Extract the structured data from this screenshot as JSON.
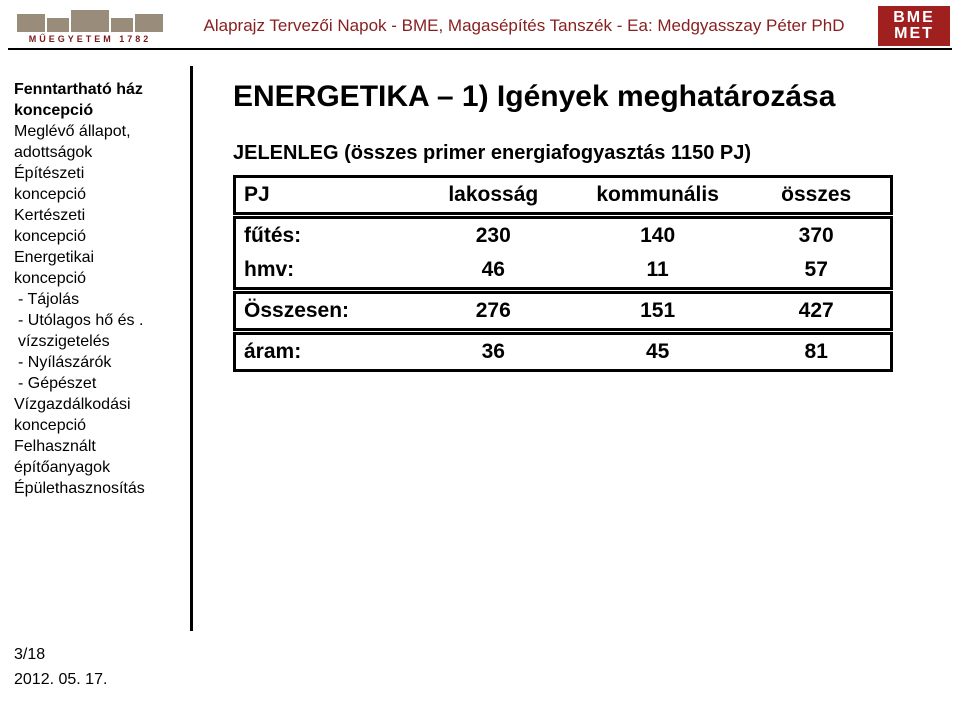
{
  "header": {
    "logo_left_text": "MŰEGYETEM 1782",
    "title": "Alaprajz Tervezői Napok - BME, Magasépítés Tanszék - Ea: Medgyasszay Péter PhD",
    "logo_right_line1": "BME",
    "logo_right_line2": "MET"
  },
  "sidebar": {
    "items": [
      {
        "text": "Fenntartható ház",
        "bold": true
      },
      {
        "text": "koncepció",
        "bold": true
      },
      {
        "text": "Meglévő állapot,",
        "bold": false
      },
      {
        "text": "adottságok",
        "bold": false
      },
      {
        "text": "Építészeti",
        "bold": false
      },
      {
        "text": "koncepció",
        "bold": false
      },
      {
        "text": "Kertészeti",
        "bold": false
      },
      {
        "text": "koncepció",
        "bold": false
      },
      {
        "text": "Energetikai",
        "bold": false
      },
      {
        "text": "koncepció",
        "bold": false
      },
      {
        "text": "- Tájolás",
        "bold": false,
        "sub": true
      },
      {
        "text": "- Utólagos hő és .",
        "bold": false,
        "sub": true
      },
      {
        "text": "vízszigetelés",
        "bold": false,
        "sub": true
      },
      {
        "text": "- Nyílászárók",
        "bold": false,
        "sub": true
      },
      {
        "text": "- Gépészet",
        "bold": false,
        "sub": true
      },
      {
        "text": "Vízgazdálkodási",
        "bold": false
      },
      {
        "text": "koncepció",
        "bold": false
      },
      {
        "text": "Felhasznált",
        "bold": false
      },
      {
        "text": "építőanyagok",
        "bold": false
      },
      {
        "text": "Épülethasznosítás",
        "bold": false
      }
    ]
  },
  "main": {
    "heading": "ENERGETIKA – 1) Igények meghatározása",
    "subtitle": "JELENLEG (összes primer energiafogyasztás 1150 PJ)",
    "table": {
      "header": [
        "PJ",
        "lakosság",
        "kommunális",
        "összes"
      ],
      "group1": [
        [
          "fűtés:",
          "230",
          "140",
          "370"
        ],
        [
          "hmv:",
          "46",
          "11",
          "57"
        ]
      ],
      "group2": [
        [
          "Összesen:",
          "276",
          "151",
          "427"
        ]
      ],
      "group3": [
        [
          "áram:",
          "36",
          "45",
          "81"
        ]
      ]
    }
  },
  "footer": {
    "page": "3/18",
    "date": "2012. 05. 17."
  },
  "colors": {
    "header_text": "#882020",
    "logo_right_bg": "#a02020",
    "line": "#000000",
    "text": "#000000",
    "background": "#ffffff"
  }
}
